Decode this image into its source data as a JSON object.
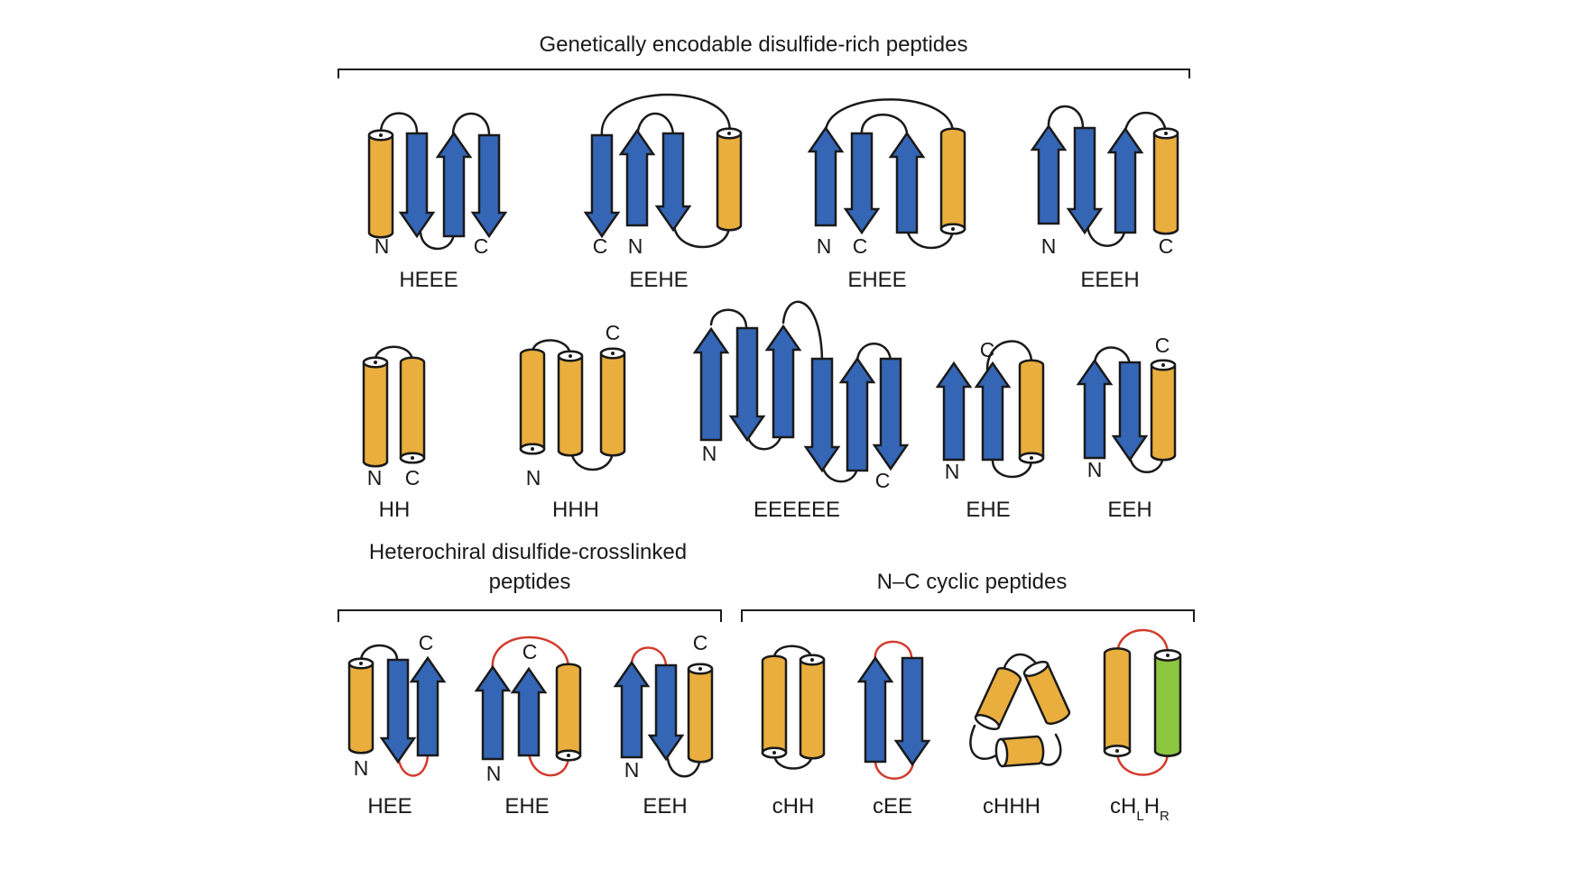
{
  "colors": {
    "helix": "#e9ae3e",
    "strand": "#3566b6",
    "right_helix": "#8cc640",
    "loop": "#1a1a1a",
    "red_loop": "#d23b2d",
    "outline": "#1a1a1a"
  },
  "sections": {
    "genetic": "Genetically encodable disulfide-rich peptides",
    "heterochiral_line1": "Heterochiral disulfide-crosslinked",
    "heterochiral_line2": "peptides",
    "cyclic": "N–C cyclic peptides"
  },
  "termini": {
    "n": "N",
    "c": "C"
  },
  "topologies": {
    "heee": "HEEE",
    "eehe": "EEHE",
    "ehee": "EHEE",
    "eeeh": "EEEH",
    "hh": "HH",
    "hhh": "HHH",
    "eeeeee": "EEEEEE",
    "ehe": "EHE",
    "eeh": "EEH",
    "hee_het": "HEE",
    "ehe_het": "EHE",
    "eeh_het": "EEH",
    "chh": "cHH",
    "cee": "cEE",
    "chhh": "cHHH",
    "chlhr_base1": "cH",
    "chlhr_sub1": "L",
    "chlhr_base2": "H",
    "chlhr_sub2": "R"
  }
}
